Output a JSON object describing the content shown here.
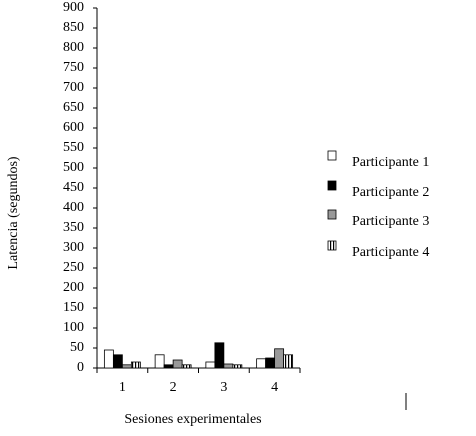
{
  "chart_data": {
    "type": "bar",
    "x_label": "Sesiones experimentales",
    "y_label": "Latencia (segundos)",
    "categories": [
      "1",
      "2",
      "3",
      "4"
    ],
    "series": [
      {
        "name": "Participante 1",
        "color": "#ffffff",
        "values": [
          45,
          33,
          15,
          23
        ]
      },
      {
        "name": "Participante 2",
        "color": "#000000",
        "values": [
          33,
          8,
          63,
          25
        ]
      },
      {
        "name": "Participante 3",
        "color": "#999999",
        "values": [
          8,
          20,
          10,
          48
        ]
      },
      {
        "name": "Participante 4",
        "color": "#ffffff",
        "pattern": "vertical-stripes",
        "values": [
          15,
          8,
          8,
          33
        ]
      }
    ],
    "ylim": [
      0,
      900
    ],
    "yticks": [
      0,
      50,
      100,
      150,
      200,
      250,
      300,
      350,
      400,
      450,
      500,
      550,
      600,
      650,
      700,
      750,
      800,
      850,
      900
    ],
    "legend": "right"
  }
}
